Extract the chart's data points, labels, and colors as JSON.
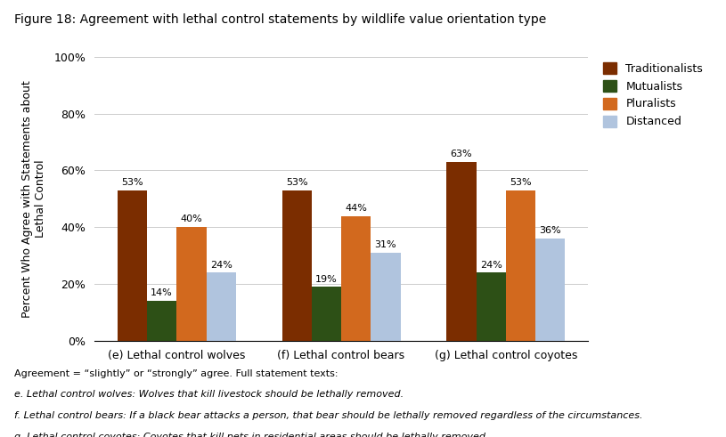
{
  "title": "Figure 18: Agreement with lethal control statements by wildlife value orientation type",
  "groups": [
    "(e) Lethal control wolves",
    "(f) Lethal control bears",
    "(g) Lethal control coyotes"
  ],
  "series": [
    "Traditionalists",
    "Mutualists",
    "Pluralists",
    "Distanced"
  ],
  "values": {
    "Traditionalists": [
      53,
      53,
      63
    ],
    "Mutualists": [
      14,
      19,
      24
    ],
    "Pluralists": [
      40,
      44,
      53
    ],
    "Distanced": [
      24,
      31,
      36
    ]
  },
  "colors": {
    "Traditionalists": "#7B2D00",
    "Mutualists": "#2D5016",
    "Pluralists": "#D2691E",
    "Distanced": "#B0C4DE"
  },
  "ylabel": "Percent Who Agree with Statements about\nLethal Control",
  "ylim": [
    0,
    100
  ],
  "yticks": [
    0,
    20,
    40,
    60,
    80,
    100
  ],
  "ytick_labels": [
    "0%",
    "20%",
    "40%",
    "60%",
    "80%",
    "100%"
  ],
  "footer_normal": "Agreement = “slightly” or “strongly” agree. Full statement texts:",
  "footer_italic": [
    "e. Lethal control wolves: Wolves that kill livestock should be lethally removed.",
    "f. Lethal control bears: If a black bear attacks a person, that bear should be lethally removed regardless of the circumstances.",
    "g. Lethal control coyotes: Coyotes that kill pets in residential areas should be lethally removed."
  ],
  "bar_width": 0.18,
  "background_color": "#FFFFFF"
}
